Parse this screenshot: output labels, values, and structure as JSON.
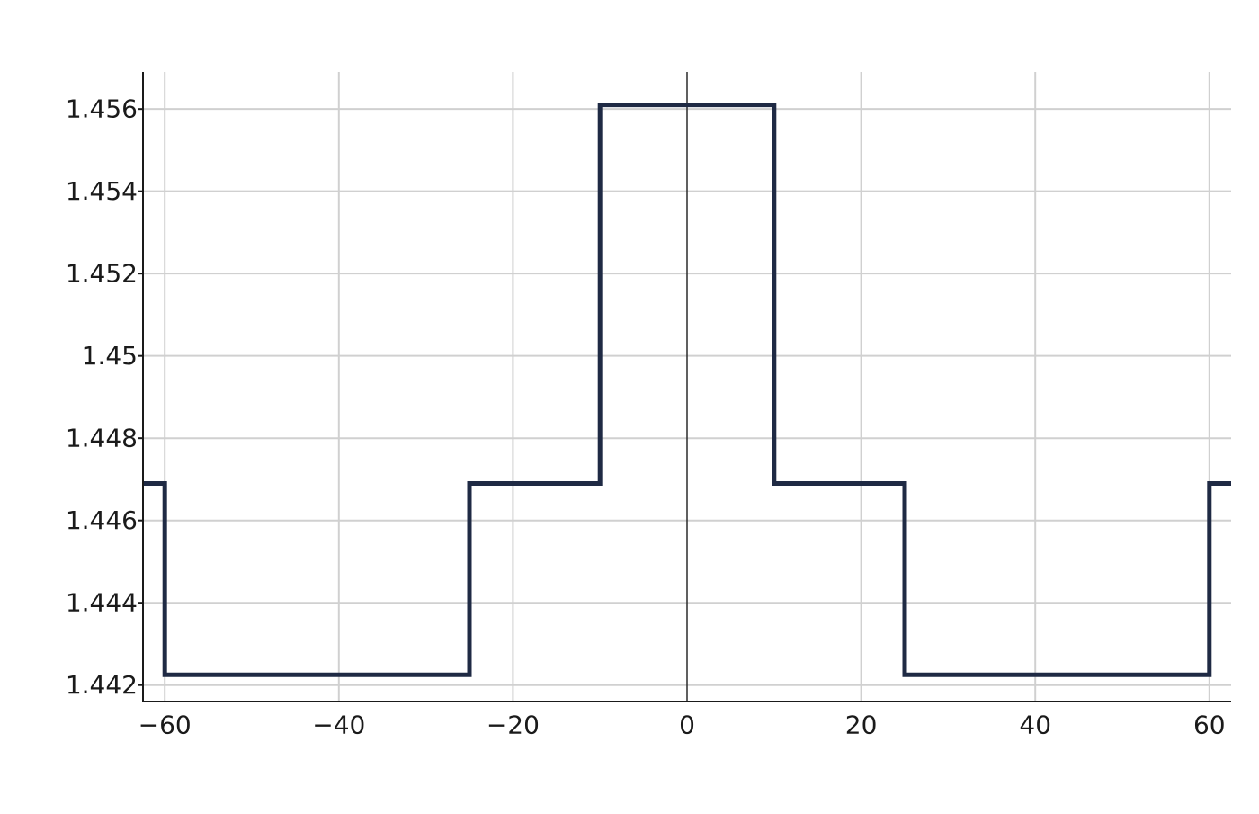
{
  "chart_data": {
    "type": "line",
    "line_shape": "step",
    "title": "",
    "xlabel": "",
    "ylabel": "",
    "xlim": [
      -62.5,
      62.5
    ],
    "ylim": [
      1.4416,
      1.4569
    ],
    "x_ticks": [
      -60,
      -40,
      -20,
      0,
      20,
      40,
      60
    ],
    "x_tick_labels": [
      "−60",
      "−40",
      "−20",
      "0",
      "20",
      "40",
      "60"
    ],
    "y_ticks": [
      1.442,
      1.444,
      1.446,
      1.448,
      1.45,
      1.452,
      1.454,
      1.456
    ],
    "y_tick_labels": [
      "1.442",
      "1.444",
      "1.446",
      "1.448",
      "1.45",
      "1.452",
      "1.454",
      "1.456"
    ],
    "grid": true,
    "zero_line": true,
    "series": [
      {
        "color": "#1f2a44",
        "x": [
          -62.5,
          -60,
          -60,
          -25,
          -25,
          -10,
          -10,
          10,
          10,
          25,
          25,
          60,
          60,
          62.5
        ],
        "y": [
          1.4469,
          1.4469,
          1.44225,
          1.44225,
          1.4469,
          1.4469,
          1.4561,
          1.4561,
          1.4469,
          1.4469,
          1.44225,
          1.44225,
          1.4469,
          1.4469
        ]
      }
    ]
  }
}
